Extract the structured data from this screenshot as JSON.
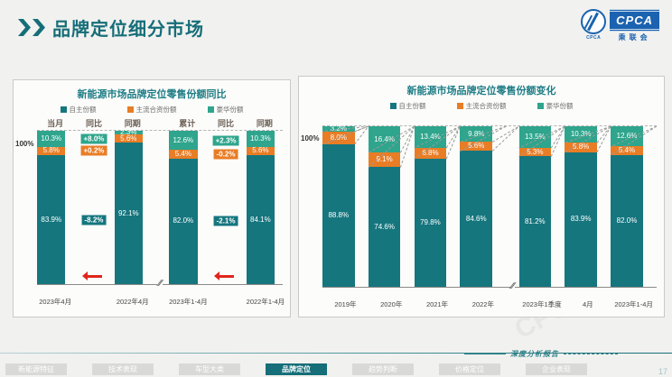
{
  "slide": {
    "title": "品牌定位细分市场"
  },
  "logo": {
    "cpca": "CPCA",
    "sub": "乘联会",
    "emblem_caption": "CPCA"
  },
  "colors": {
    "domestic": "#15767e",
    "jv": "#e87d26",
    "luxury": "#2ea58c",
    "accent": "#156e78",
    "red_arrow": "#df261b",
    "navy": "#1b63b0"
  },
  "footer": {
    "report_label": "深度分析报告",
    "page_number": "17",
    "nav_tabs": [
      {
        "label": "新能源特征",
        "active": false
      },
      {
        "label": "技术表现",
        "active": false
      },
      {
        "label": "车型大类",
        "active": false
      },
      {
        "label": "品牌定位",
        "active": true
      },
      {
        "label": "趋势判断",
        "active": false
      },
      {
        "label": "价格定位",
        "active": false
      },
      {
        "label": "企业表现",
        "active": false
      }
    ]
  },
  "chart_data": [
    {
      "type": "bar",
      "subtype": "stacked-100",
      "title": "新能源市场品牌定位零售份额同比",
      "y_top_label": "100%",
      "ylim": [
        0,
        100
      ],
      "legend": [
        {
          "label": "自主份额",
          "key": "domestic"
        },
        {
          "label": "主流合资份额",
          "key": "jv"
        },
        {
          "label": "豪华份额",
          "key": "luxury"
        }
      ],
      "stack_order_top_to_bottom": [
        "luxury",
        "jv",
        "domestic"
      ],
      "connectors": false,
      "columns": [
        {
          "kind": "bar",
          "header": "当月",
          "axis_label": "2023年4月",
          "values": {
            "luxury": 10.3,
            "jv": 5.8,
            "domestic": 83.9
          }
        },
        {
          "kind": "badges",
          "header": "同比",
          "axis_label": "",
          "arrow": true,
          "values": {
            "luxury": "+8.0%",
            "jv": "+0.2%",
            "domestic": "-8.2%"
          }
        },
        {
          "kind": "bar",
          "header": "同期",
          "axis_label": "2022年4月",
          "values": {
            "luxury": 2.3,
            "jv": 5.6,
            "domestic": 92.1
          }
        },
        {
          "kind": "gap",
          "break": true
        },
        {
          "kind": "bar",
          "header": "累计",
          "axis_label": "2023年1-4月",
          "values": {
            "luxury": 12.6,
            "jv": 5.4,
            "domestic": 82.0
          }
        },
        {
          "kind": "badges",
          "header": "同比",
          "axis_label": "",
          "arrow": true,
          "values": {
            "luxury": "+2.3%",
            "jv": "-0.2%",
            "domestic": "-2.1%"
          }
        },
        {
          "kind": "bar",
          "header": "同期",
          "axis_label": "2022年1-4月",
          "values": {
            "luxury": 10.3,
            "jv": 5.6,
            "domestic": 84.1
          }
        }
      ]
    },
    {
      "type": "bar",
      "subtype": "stacked-100",
      "title": "新能源市场品牌定位零售份额变化",
      "y_top_label": "100%",
      "ylim": [
        0,
        100
      ],
      "legend": [
        {
          "label": "自主份额",
          "key": "domestic"
        },
        {
          "label": "主流合资份额",
          "key": "jv"
        },
        {
          "label": "豪华份额",
          "key": "luxury"
        }
      ],
      "stack_order_top_to_bottom": [
        "luxury",
        "jv",
        "domestic"
      ],
      "connectors": true,
      "columns": [
        {
          "kind": "bar",
          "axis_label": "2019年",
          "values": {
            "luxury": 3.2,
            "jv": 8.0,
            "domestic": 88.8
          }
        },
        {
          "kind": "bar",
          "axis_label": "2020年",
          "values": {
            "luxury": 16.4,
            "jv": 9.1,
            "domestic": 74.6
          }
        },
        {
          "kind": "bar",
          "axis_label": "2021年",
          "values": {
            "luxury": 13.4,
            "jv": 6.8,
            "domestic": 79.8
          }
        },
        {
          "kind": "bar",
          "axis_label": "2022年",
          "values": {
            "luxury": 9.8,
            "jv": 5.6,
            "domestic": 84.6
          }
        },
        {
          "kind": "gap",
          "break": true
        },
        {
          "kind": "bar",
          "axis_label": "2023年1季度",
          "values": {
            "luxury": 13.5,
            "jv": 5.3,
            "domestic": 81.2
          }
        },
        {
          "kind": "bar",
          "axis_label": "4月",
          "values": {
            "luxury": 10.3,
            "jv": 5.8,
            "domestic": 83.9
          }
        },
        {
          "kind": "bar",
          "axis_label": "2023年1-4月",
          "values": {
            "luxury": 12.6,
            "jv": 5.4,
            "domestic": 82.0
          }
        }
      ]
    }
  ]
}
